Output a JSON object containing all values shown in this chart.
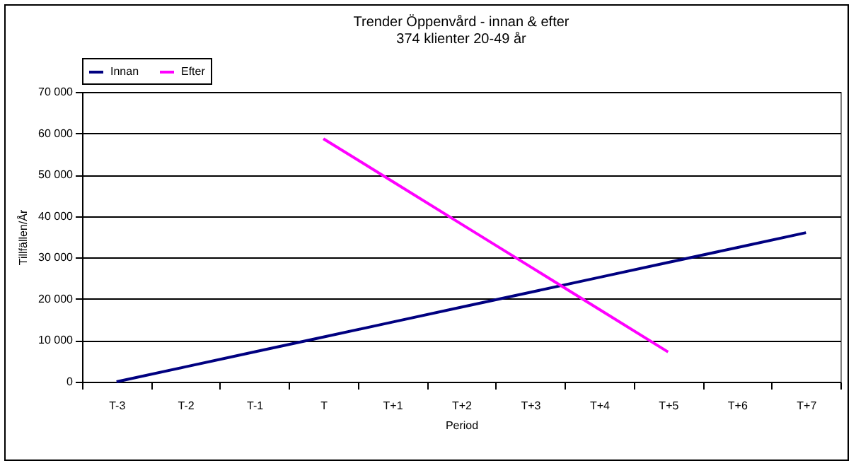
{
  "chart_data": {
    "type": "line",
    "title": "Trender Öppenvård - innan & efter",
    "subtitle": "374 klienter 20-49 år",
    "xlabel": "Period",
    "ylabel": "Tillfällen/År",
    "categories": [
      "T-3",
      "T-2",
      "T-1",
      "T",
      "T+1",
      "T+2",
      "T+3",
      "T+4",
      "T+5",
      "T+6",
      "T+7"
    ],
    "series": [
      {
        "name": "Innan",
        "color": "#000080",
        "values": [
          0,
          3600,
          7200,
          10800,
          14400,
          18000,
          21600,
          25200,
          28800,
          32400,
          36000
        ]
      },
      {
        "name": "Efter",
        "color": "#ff00ff",
        "values": [
          null,
          null,
          null,
          58700,
          48400,
          38100,
          27800,
          17500,
          7200,
          null,
          null
        ]
      }
    ],
    "ylim": [
      0,
      70000
    ],
    "yticks": [
      {
        "value": 0,
        "label": "0"
      },
      {
        "value": 10000,
        "label": "10 000"
      },
      {
        "value": 20000,
        "label": "20 000"
      },
      {
        "value": 30000,
        "label": "30 000"
      },
      {
        "value": 40000,
        "label": "40 000"
      },
      {
        "value": 50000,
        "label": "50 000"
      },
      {
        "value": 60000,
        "label": "60 000"
      },
      {
        "value": 70000,
        "label": "70 000"
      }
    ],
    "grid": "y",
    "legend": "top",
    "marker": "none",
    "line_style": "solid"
  }
}
